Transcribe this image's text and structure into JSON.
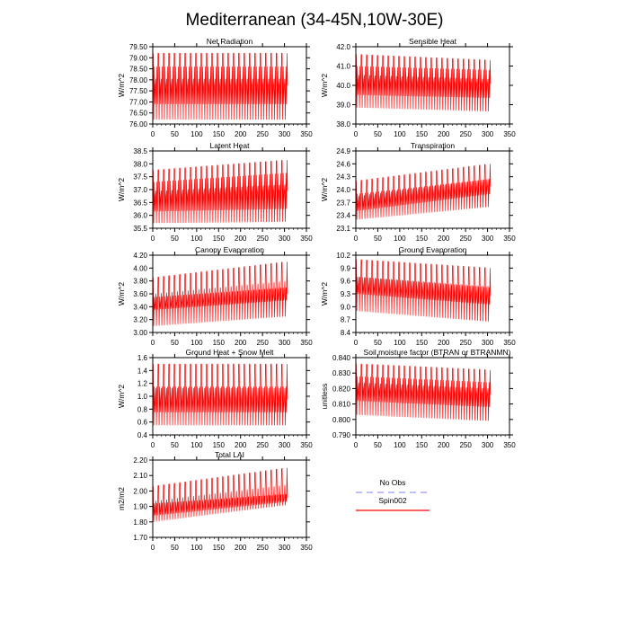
{
  "title": "Mediterranean (34-45N,10W-30E)",
  "legend": {
    "items": [
      {
        "name": "No Obs",
        "color": "#9a9af0",
        "dash": true
      },
      {
        "name": "Spin002",
        "color": "#ff0000",
        "dash": false
      }
    ]
  },
  "chart_data": [
    {
      "type": "line",
      "title": "Net Radiation",
      "ylabel": "W/m^2",
      "xlim": [
        0,
        350
      ],
      "ylim": [
        76.0,
        79.5
      ],
      "xticks": [
        0,
        50,
        100,
        150,
        200,
        250,
        300,
        350
      ],
      "yticks": [
        "76.00",
        "76.50",
        "77.00",
        "77.50",
        "78.00",
        "78.50",
        "79.00",
        "79.50"
      ],
      "series": [
        {
          "color": "#ff0000",
          "x_range": [
            1,
            307
          ],
          "cycles": 25,
          "envelope": [
            {
              "x": 1,
              "min": 76.2,
              "max": 79.2,
              "mid_lo": 76.9,
              "mid_hi": 78.6
            },
            {
              "x": 307,
              "min": 76.2,
              "max": 79.2,
              "mid_lo": 76.9,
              "mid_hi": 78.6
            }
          ]
        }
      ]
    },
    {
      "type": "line",
      "title": "Sensible Heat",
      "ylabel": "W/m^2",
      "xlim": [
        0,
        350
      ],
      "ylim": [
        38.0,
        42.0
      ],
      "xticks": [
        0,
        50,
        100,
        150,
        200,
        250,
        300,
        350
      ],
      "yticks": [
        "38.0",
        "39.0",
        "40.0",
        "41.0",
        "42.0"
      ],
      "series": [
        {
          "color": "#ff0000",
          "x_range": [
            1,
            307
          ],
          "cycles": 25,
          "envelope": [
            {
              "x": 1,
              "min": 38.85,
              "max": 41.6,
              "mid_lo": 39.5,
              "mid_hi": 41.0
            },
            {
              "x": 307,
              "min": 38.65,
              "max": 41.3,
              "mid_lo": 39.35,
              "mid_hi": 40.8
            }
          ]
        }
      ]
    },
    {
      "type": "line",
      "title": "Latent Heat",
      "ylabel": "W/m^2",
      "xlim": [
        0,
        350
      ],
      "ylim": [
        35.5,
        38.5
      ],
      "xticks": [
        0,
        50,
        100,
        150,
        200,
        250,
        300,
        350
      ],
      "yticks": [
        "35.5",
        "36.0",
        "36.5",
        "37.0",
        "37.5",
        "38.0",
        "38.5"
      ],
      "series": [
        {
          "color": "#ff0000",
          "x_range": [
            1,
            307
          ],
          "cycles": 25,
          "envelope": [
            {
              "x": 1,
              "min": 35.7,
              "max": 37.75,
              "mid_lo": 36.15,
              "mid_hi": 37.3
            },
            {
              "x": 307,
              "min": 35.75,
              "max": 38.15,
              "mid_lo": 36.25,
              "mid_hi": 37.65
            }
          ]
        }
      ]
    },
    {
      "type": "line",
      "title": "Transpiration",
      "ylabel": "W/m^2",
      "xlim": [
        0,
        350
      ],
      "ylim": [
        23.1,
        24.9
      ],
      "xticks": [
        0,
        50,
        100,
        150,
        200,
        250,
        300,
        350
      ],
      "yticks": [
        "23.1",
        "23.4",
        "23.7",
        "24.0",
        "24.3",
        "24.6",
        "24.9"
      ],
      "series": [
        {
          "color": "#ff0000",
          "x_range": [
            1,
            307
          ],
          "cycles": 25,
          "envelope": [
            {
              "x": 1,
              "min": 23.3,
              "max": 24.2,
              "mid_lo": 23.5,
              "mid_hi": 23.9
            },
            {
              "x": 307,
              "min": 23.6,
              "max": 24.6,
              "mid_lo": 23.9,
              "mid_hi": 24.25
            }
          ]
        }
      ]
    },
    {
      "type": "line",
      "title": "Canopy Evaporation",
      "ylabel": "W/m^2",
      "xlim": [
        0,
        350
      ],
      "ylim": [
        3.0,
        4.2
      ],
      "xticks": [
        0,
        50,
        100,
        150,
        200,
        250,
        300,
        350
      ],
      "yticks": [
        "3.00",
        "3.20",
        "3.40",
        "3.60",
        "3.80",
        "4.00",
        "4.20"
      ],
      "series": [
        {
          "color": "#ff0000",
          "x_range": [
            1,
            307
          ],
          "cycles": 25,
          "envelope": [
            {
              "x": 1,
              "min": 3.1,
              "max": 3.85,
              "mid_lo": 3.35,
              "mid_hi": 3.55
            },
            {
              "x": 307,
              "min": 3.25,
              "max": 4.1,
              "mid_lo": 3.5,
              "mid_hi": 3.7
            }
          ]
        }
      ]
    },
    {
      "type": "line",
      "title": "Ground Evaporation",
      "ylabel": "W/m^2",
      "xlim": [
        0,
        350
      ],
      "ylim": [
        8.4,
        10.2
      ],
      "xticks": [
        0,
        50,
        100,
        150,
        200,
        250,
        300,
        350
      ],
      "yticks": [
        "8.4",
        "8.7",
        "9.0",
        "9.3",
        "9.6",
        "9.9",
        "10.2"
      ],
      "series": [
        {
          "color": "#ff0000",
          "x_range": [
            1,
            307
          ],
          "cycles": 25,
          "envelope": [
            {
              "x": 1,
              "min": 8.9,
              "max": 10.1,
              "mid_lo": 9.3,
              "mid_hi": 9.7
            },
            {
              "x": 307,
              "min": 8.65,
              "max": 9.9,
              "mid_lo": 9.05,
              "mid_hi": 9.45
            }
          ]
        }
      ]
    },
    {
      "type": "line",
      "title": "Ground Heat + Snow Melt",
      "ylabel": "W/m^2",
      "xlim": [
        0,
        350
      ],
      "ylim": [
        0.4,
        1.6
      ],
      "xticks": [
        0,
        50,
        100,
        150,
        200,
        250,
        300,
        350
      ],
      "yticks": [
        "0.4",
        "0.6",
        "0.8",
        "1.0",
        "1.2",
        "1.4",
        "1.6"
      ],
      "series": [
        {
          "color": "#ff0000",
          "x_range": [
            1,
            307
          ],
          "cycles": 25,
          "envelope": [
            {
              "x": 1,
              "min": 0.55,
              "max": 1.5,
              "mid_lo": 0.75,
              "mid_hi": 1.15
            },
            {
              "x": 307,
              "min": 0.55,
              "max": 1.5,
              "mid_lo": 0.75,
              "mid_hi": 1.15
            }
          ]
        }
      ]
    },
    {
      "type": "line",
      "title": "Soil moisture factor (BTRAN or BTRANMN)",
      "ylabel": "unitless",
      "xlim": [
        0,
        350
      ],
      "ylim": [
        0.79,
        0.84
      ],
      "xticks": [
        0,
        50,
        100,
        150,
        200,
        250,
        300,
        350
      ],
      "yticks": [
        "0.790",
        "0.800",
        "0.810",
        "0.820",
        "0.830",
        "0.840"
      ],
      "series": [
        {
          "color": "#ff0000",
          "x_range": [
            1,
            307
          ],
          "cycles": 25,
          "envelope": [
            {
              "x": 1,
              "min": 0.803,
              "max": 0.836,
              "mid_lo": 0.812,
              "mid_hi": 0.828
            },
            {
              "x": 307,
              "min": 0.799,
              "max": 0.832,
              "mid_lo": 0.808,
              "mid_hi": 0.824
            }
          ]
        }
      ]
    },
    {
      "type": "line",
      "title": "Total LAI",
      "ylabel": "m2/m2",
      "xlim": [
        0,
        350
      ],
      "ylim": [
        1.7,
        2.2
      ],
      "xticks": [
        0,
        50,
        100,
        150,
        200,
        250,
        300,
        350
      ],
      "yticks": [
        "1.70",
        "1.80",
        "1.90",
        "2.00",
        "2.10",
        "2.20"
      ],
      "series": [
        {
          "color": "#ff0000",
          "x_range": [
            1,
            307
          ],
          "cycles": 25,
          "envelope": [
            {
              "x": 1,
              "min": 1.8,
              "max": 2.03,
              "mid_lo": 1.84,
              "mid_hi": 1.92
            },
            {
              "x": 307,
              "min": 1.91,
              "max": 2.15,
              "mid_lo": 1.93,
              "mid_hi": 1.98
            }
          ]
        }
      ]
    }
  ]
}
